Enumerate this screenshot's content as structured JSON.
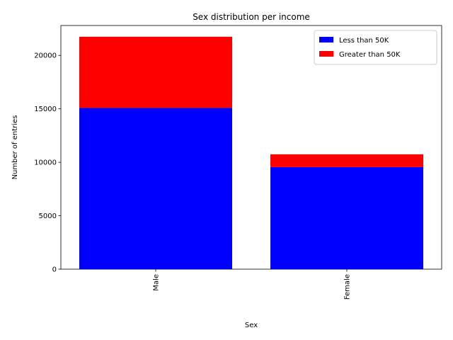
{
  "chart_data": {
    "type": "bar",
    "stacked": true,
    "title": "Sex distribution per income",
    "xlabel": "Sex",
    "ylabel": "Number of entries",
    "categories": [
      "Male",
      "Female"
    ],
    "series": [
      {
        "name": "Less than 50K",
        "color": "#0000ff",
        "values": [
          15100,
          9550
        ]
      },
      {
        "name": "Greater than 50K",
        "color": "#ff0000",
        "values": [
          6650,
          1200
        ]
      }
    ],
    "ylim": [
      0,
      22800
    ],
    "yticks": [
      0,
      5000,
      10000,
      15000,
      20000
    ],
    "grid": false,
    "legend_position": "top-right",
    "x_tick_rotation": 90
  }
}
